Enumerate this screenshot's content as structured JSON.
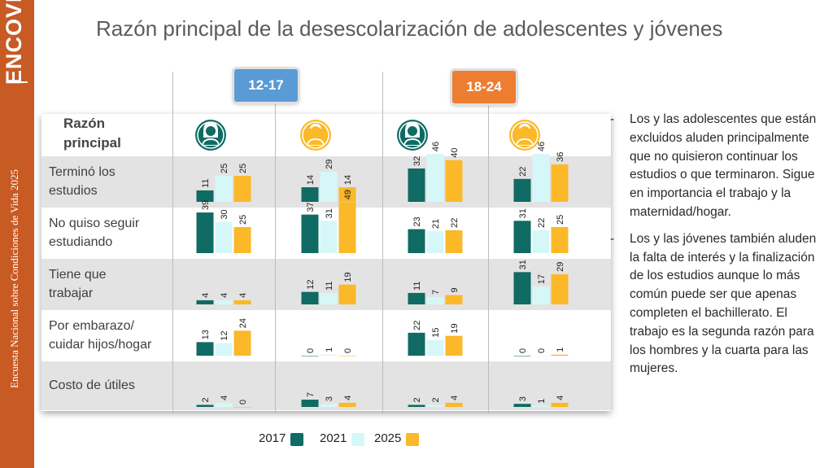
{
  "brand": "ENCOVI",
  "sidebar_text": "Encuesta Nacional sobre Condiciones de Vida 2025",
  "title": "Razón principal de la desescolarización de adolescentes y jóvenes",
  "colors": {
    "sidebar": "#c85a24",
    "group_12_17": "#5a9bd5",
    "group_18_24": "#ed7d31",
    "c2017": "#0f6b63",
    "c2021": "#d6f7f7",
    "c2025": "#fbb829",
    "female_icon": "#0f6b63",
    "male_icon": "#fbb829"
  },
  "row_header": "Razón\nprincipal",
  "notes": [
    {
      "dash": "-",
      "text": "Los y las adolescentes que están excluidos aluden principalmente que no quisieron continuar los estudios o que terminaron. Sigue en importancia el trabajo y la maternidad/hogar."
    },
    {
      "dash": "-",
      "text": "Los y las jóvenes también aluden la falta de interés y la finalización de los estudios aunque lo más común puede ser que apenas completen el bachillerato. El trabajo es la segunda razón para los hombres y la cuarta para las mujeres."
    }
  ],
  "legend_years": [
    "2017",
    "2021",
    "2025"
  ],
  "chart_data": {
    "type": "bar",
    "title": "Razón principal de la desescolarización de adolescentes y jóvenes",
    "categories": [
      "Terminó los\nestudios",
      "No quiso seguir\nestudiando",
      "Tiene que\ntrabajar",
      "Por embarazo/\ncuidar hijos/hogar",
      "Costo de útiles"
    ],
    "age_groups": [
      "12-17",
      "18-24"
    ],
    "panels": [
      {
        "group": "12-17",
        "icon": "female",
        "series": [
          {
            "name": "2017",
            "values": [
              11,
              39,
              4,
              13,
              2
            ]
          },
          {
            "name": "2021",
            "values": [
              25,
              30,
              4,
              12,
              4
            ]
          },
          {
            "name": "2025",
            "values": [
              25,
              25,
              4,
              24,
              0
            ]
          }
        ]
      },
      {
        "group": "12-17",
        "icon": "male",
        "series": [
          {
            "name": "2017",
            "values": [
              14,
              37,
              12,
              0,
              7
            ]
          },
          {
            "name": "2021",
            "values": [
              29,
              31,
              11,
              1,
              3
            ]
          },
          {
            "name": "2025",
            "values": [
              14,
              49,
              19,
              0,
              4
            ]
          }
        ]
      },
      {
        "group": "18-24",
        "icon": "female",
        "series": [
          {
            "name": "2017",
            "values": [
              32,
              23,
              11,
              22,
              2
            ]
          },
          {
            "name": "2021",
            "values": [
              46,
              21,
              7,
              15,
              2
            ]
          },
          {
            "name": "2025",
            "values": [
              40,
              22,
              9,
              19,
              4
            ]
          }
        ]
      },
      {
        "group": "18-24",
        "icon": "male",
        "series": [
          {
            "name": "2017",
            "values": [
              22,
              31,
              31,
              0,
              3
            ]
          },
          {
            "name": "2021",
            "values": [
              46,
              22,
              17,
              0,
              1
            ]
          },
          {
            "name": "2025",
            "values": [
              36,
              25,
              29,
              1,
              4
            ]
          }
        ]
      }
    ],
    "legend_position": "bottom",
    "grid": false
  }
}
